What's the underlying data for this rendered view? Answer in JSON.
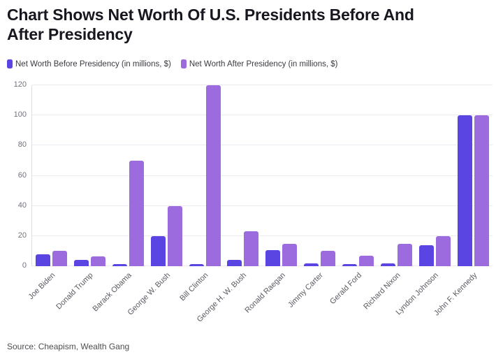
{
  "header": {
    "title": "Chart Shows Net Worth Of U.S. Presidents Before And After Presidency",
    "title_lines": [
      "Chart Shows Net Worth Of U.S. Presidents Before And",
      "After Presidency"
    ]
  },
  "footer": {
    "source": "Source: Cheapism, Wealth Gang"
  },
  "colors": {
    "before": "#5a45e3",
    "after": "#9c6bde",
    "grid": "#ebebf1",
    "axis": "#dcdce4",
    "tick_text": "#71717c",
    "xlabel_text": "#5a5a63",
    "title_text": "#17171f"
  },
  "chart_data": {
    "type": "bar",
    "title": "Chart Shows Net Worth Of U.S. Presidents Before And After Presidency",
    "categories": [
      "Joe Biden",
      "Donald Trump",
      "Barack Obama",
      "George W. Bush",
      "Bill Clinton",
      "George H. W. Bush",
      "Ronald Raegan",
      "Jimmy Carter",
      "Gerald Ford",
      "Richard Nixon",
      "Lyndon Johnson",
      "John F. Kennedy"
    ],
    "series": [
      {
        "name": "Net Worth Before Presidency (in millions, $)",
        "color_key": "before",
        "values": [
          8,
          4,
          1.5,
          20,
          1.5,
          4,
          10.5,
          2,
          1.5,
          2,
          14,
          100
        ]
      },
      {
        "name": "Net Worth After Presidency (in millions, $)",
        "color_key": "after",
        "values": [
          10,
          6.5,
          70,
          40,
          120,
          23,
          15,
          10,
          7,
          15,
          20,
          100
        ]
      }
    ],
    "xlabel": "",
    "ylabel": "",
    "ylim": [
      0,
      120
    ],
    "yticks": [
      0,
      20,
      40,
      60,
      80,
      100,
      120
    ],
    "grid": true,
    "legend_position": "top-left"
  }
}
